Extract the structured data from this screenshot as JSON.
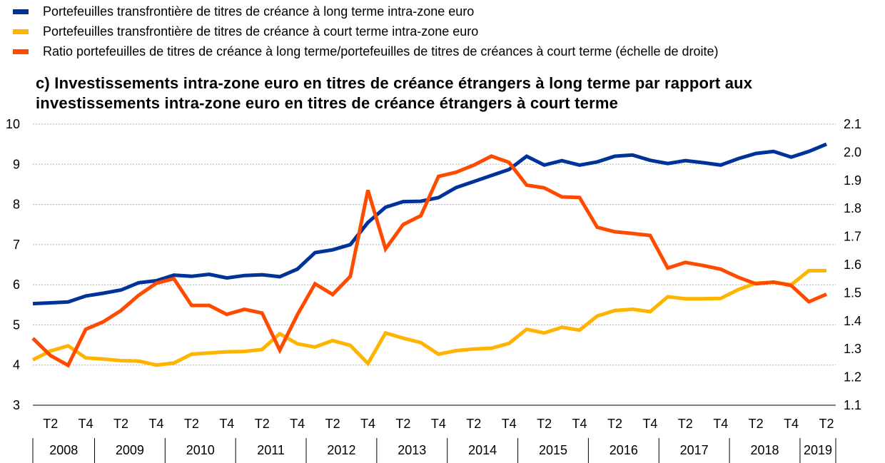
{
  "legend": {
    "items": [
      {
        "label": "Portefeuilles transfrontière de titres de créance à long terme intra-zone euro",
        "color": "#003399"
      },
      {
        "label": "Portefeuilles transfrontière de titres de créance à court terme intra-zone euro",
        "color": "#FFB400"
      },
      {
        "label": "Ratio portefeuilles de titres de créance à long terme/portefeuilles de titres de créances à court terme (échelle de droite)",
        "color": "#FF4B00"
      }
    ]
  },
  "chart_data": {
    "type": "line",
    "title": "c) Investissements intra-zone euro en titres de créance étrangers à long terme par rapport aux investissements intra-zone euro en titres de créance étrangers à court terme",
    "title_lines": [
      "c) Investissements intra-zone euro en titres de créance étrangers à long terme par rapport aux",
      "investissements intra-zone euro en titres de créance étrangers à court terme"
    ],
    "ylim_left": [
      3,
      10
    ],
    "yticks_left": [
      "3",
      "4",
      "5",
      "6",
      "7",
      "8",
      "9",
      "10"
    ],
    "ylim_right": [
      1.1,
      2.1
    ],
    "yticks_right": [
      "1.1",
      "1.2",
      "1.3",
      "1.4",
      "1.5",
      "1.6",
      "1.7",
      "1.8",
      "1.9",
      "2.0",
      "2.1"
    ],
    "quarter_ticks": [
      "T2",
      "T4",
      "T2",
      "T4",
      "T2",
      "T4",
      "T2",
      "T4",
      "T2",
      "T4",
      "T2",
      "T4",
      "T2",
      "T4",
      "T2",
      "T4",
      "T2",
      "T4",
      "T2",
      "T4",
      "T2",
      "T4",
      "T2"
    ],
    "years": [
      "2008",
      "2009",
      "2010",
      "2011",
      "2012",
      "2013",
      "2014",
      "2015",
      "2016",
      "2017",
      "2018",
      "2019"
    ],
    "n_points": 46,
    "series": [
      {
        "name": "Portefeuilles transfrontière de titres de créance à long terme intra-zone euro",
        "axis": "left",
        "color": "#003399",
        "values": [
          5.53,
          5.55,
          5.57,
          5.72,
          5.79,
          5.87,
          6.05,
          6.1,
          6.24,
          6.21,
          6.26,
          6.17,
          6.23,
          6.25,
          6.2,
          6.39,
          6.8,
          6.87,
          7.0,
          7.55,
          7.93,
          8.07,
          8.08,
          8.17,
          8.42,
          8.57,
          8.72,
          8.87,
          9.2,
          8.98,
          9.09,
          8.98,
          9.06,
          9.2,
          9.23,
          9.1,
          9.02,
          9.09,
          9.04,
          8.98,
          9.14,
          9.27,
          9.32,
          9.18,
          9.32,
          9.5
        ]
      },
      {
        "name": "Portefeuilles transfrontière de titres de créance à court terme intra-zone euro",
        "axis": "left",
        "color": "#FFB400",
        "values": [
          4.13,
          4.35,
          4.48,
          4.18,
          4.15,
          4.11,
          4.1,
          4.0,
          4.05,
          4.27,
          4.3,
          4.33,
          4.34,
          4.39,
          4.78,
          4.53,
          4.45,
          4.61,
          4.49,
          4.04,
          4.8,
          4.67,
          4.56,
          4.27,
          4.36,
          4.4,
          4.42,
          4.54,
          4.89,
          4.8,
          4.94,
          4.87,
          5.22,
          5.36,
          5.39,
          5.33,
          5.7,
          5.65,
          5.65,
          5.66,
          5.88,
          6.04,
          6.06,
          6.0,
          6.35,
          6.35
        ]
      },
      {
        "name": "Ratio portefeuilles de titres de créance à long terme/portefeuilles de titres de créances à court terme (échelle de droite)",
        "axis": "right",
        "color": "#FF4B00",
        "values": [
          1.338,
          1.277,
          1.242,
          1.37,
          1.397,
          1.437,
          1.491,
          1.534,
          1.55,
          1.455,
          1.455,
          1.423,
          1.441,
          1.428,
          1.296,
          1.422,
          1.532,
          1.494,
          1.558,
          1.865,
          1.656,
          1.743,
          1.774,
          1.914,
          1.929,
          1.954,
          1.986,
          1.964,
          1.883,
          1.873,
          1.841,
          1.839,
          1.733,
          1.717,
          1.711,
          1.704,
          1.588,
          1.608,
          1.597,
          1.584,
          1.555,
          1.532,
          1.538,
          1.526,
          1.468,
          1.495
        ]
      }
    ]
  }
}
